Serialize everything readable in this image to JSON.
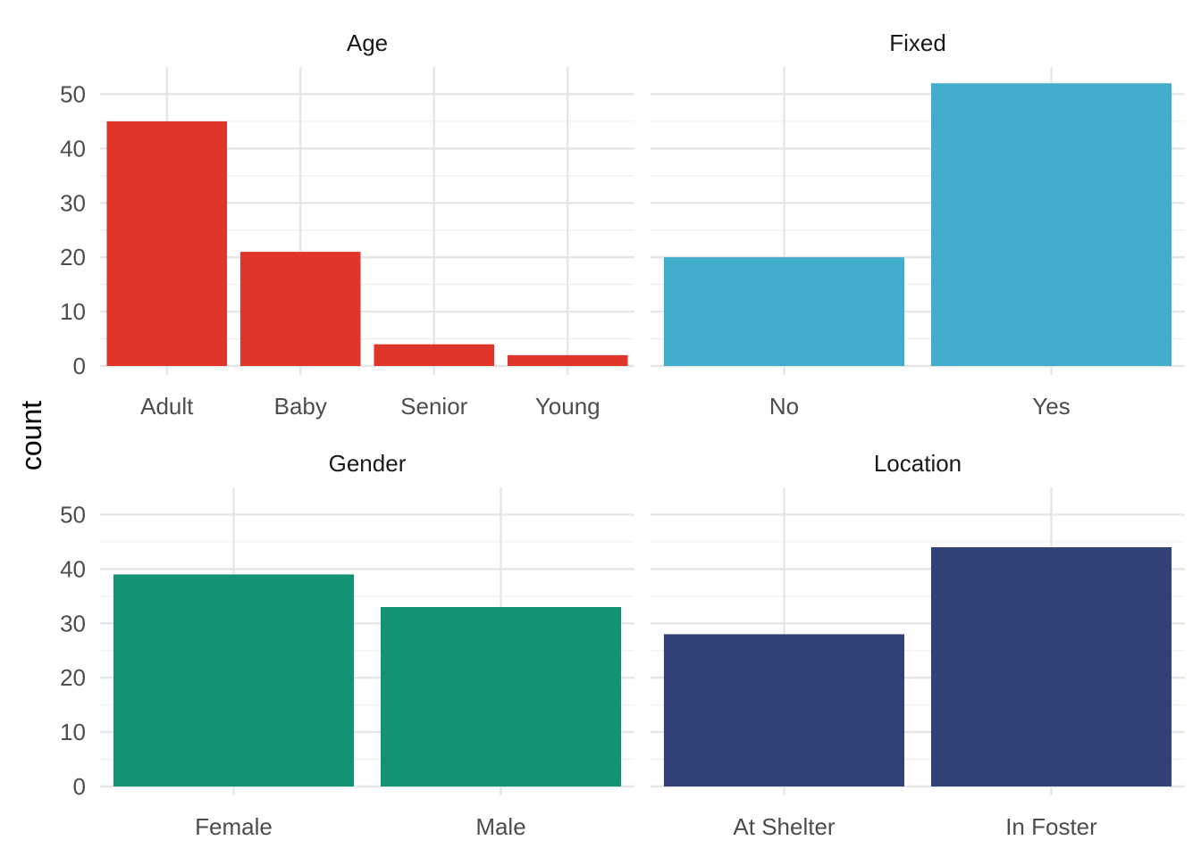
{
  "chart_data": {
    "type": "bar",
    "ylabel": "count",
    "ylim": [
      0,
      55
    ],
    "yticks": [
      0,
      10,
      20,
      30,
      40,
      50
    ],
    "grid": true,
    "facets": [
      {
        "title": "Age",
        "categories": [
          "Adult",
          "Baby",
          "Senior",
          "Young"
        ],
        "values": [
          45,
          21,
          4,
          2
        ],
        "color": "#E0362A"
      },
      {
        "title": "Fixed",
        "categories": [
          "No",
          "Yes"
        ],
        "values": [
          20,
          52
        ],
        "color": "#42ADCA"
      },
      {
        "title": "Gender",
        "categories": [
          "Female",
          "Male"
        ],
        "values": [
          39,
          33
        ],
        "color": "#149276"
      },
      {
        "title": "Location",
        "categories": [
          "At Shelter",
          "In Foster"
        ],
        "values": [
          28,
          44
        ],
        "color": "#324176"
      }
    ]
  }
}
